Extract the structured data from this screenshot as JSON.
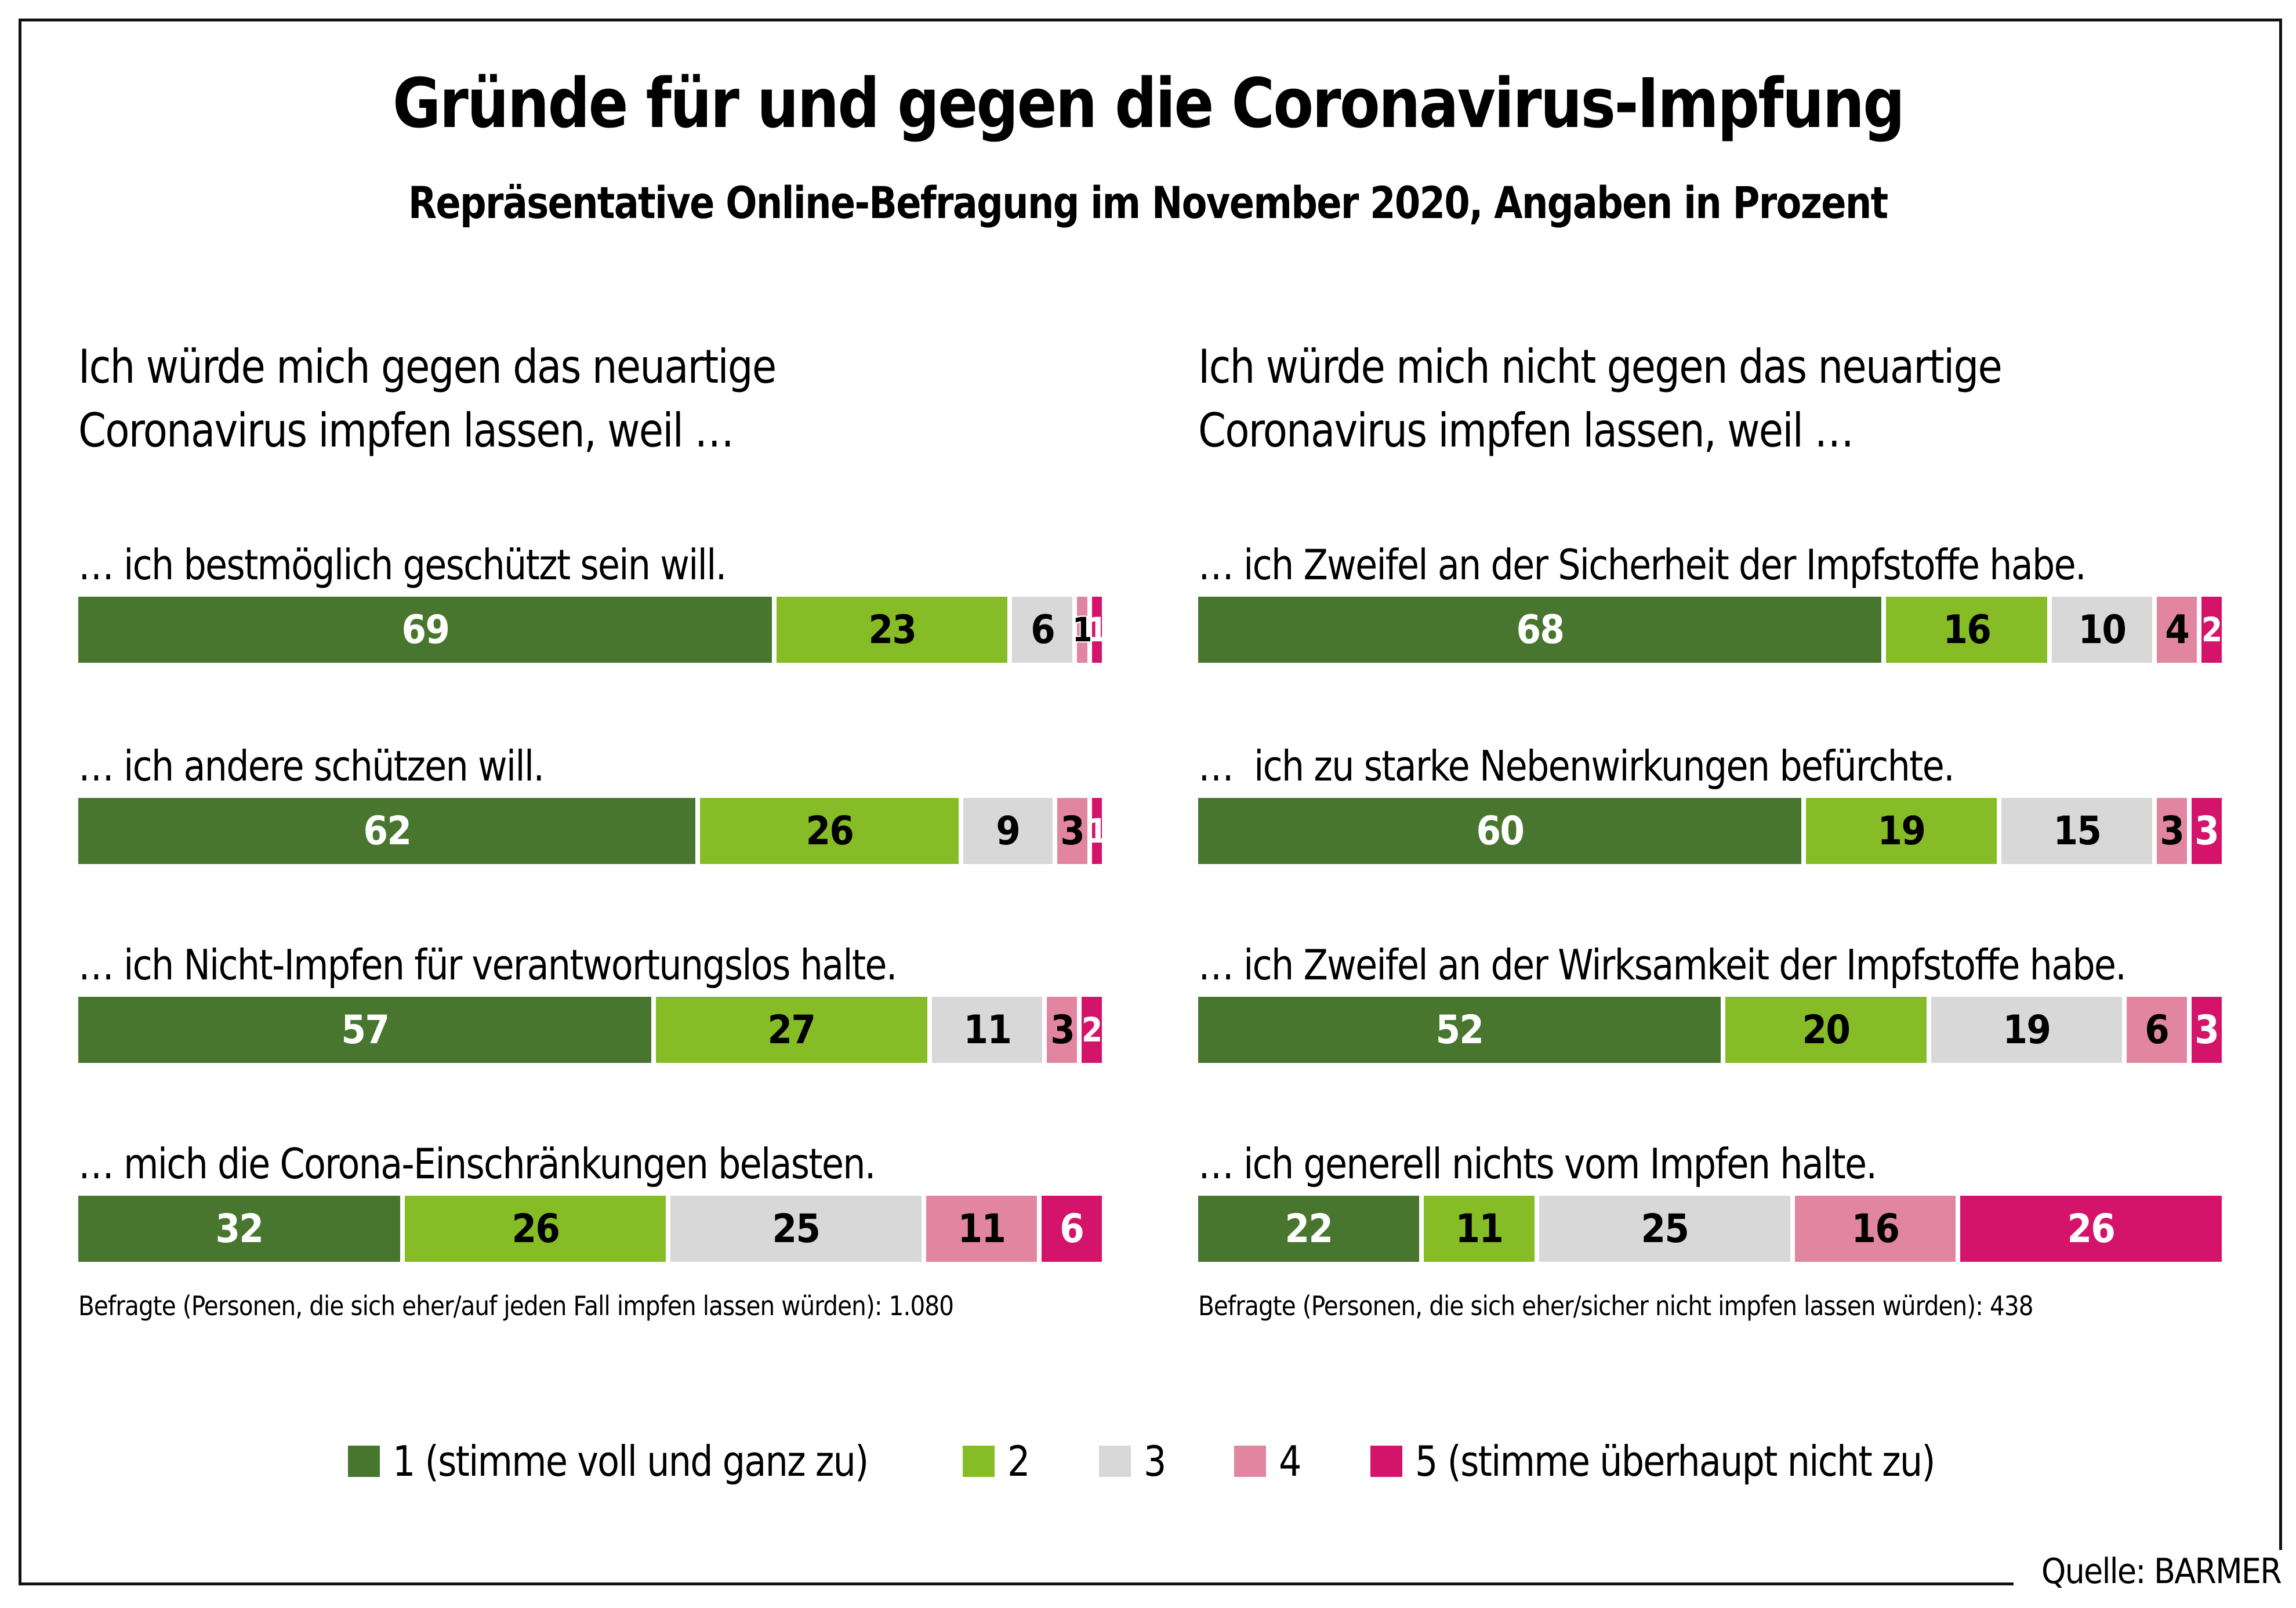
{
  "chart_data": {
    "type": "bar",
    "orientation": "horizontal-stacked-100",
    "title": "Gründe für und gegen die Coronavirus-Impfung",
    "subtitle": "Repräsentative Online-Befragung im November 2020, Angaben in Prozent",
    "source": "Quelle: BARMER",
    "legend": {
      "position": "bottom-center",
      "entries": [
        {
          "label": "1 (stimme voll und ganz zu)",
          "color": "#48762F"
        },
        {
          "label": "2",
          "color": "#86BC25"
        },
        {
          "label": "3",
          "color": "#D8D8D8"
        },
        {
          "label": "4",
          "color": "#E285A0"
        },
        {
          "label": "5 (stimme überhaupt nicht zu)",
          "color": "#D4146A"
        }
      ]
    },
    "panels": [
      {
        "intro_lines": [
          "Ich würde mich gegen das neuartige",
          "Coronavirus impfen lassen, weil …"
        ],
        "footnote": "Befragte (Personen, die sich eher/auf jeden Fall impfen lassen würden): 1.080",
        "rows": [
          {
            "label": "… ich bestmöglich geschützt sein will.",
            "values": [
              69,
              23,
              6,
              1,
              1
            ]
          },
          {
            "label": "… ich andere schützen will.",
            "values": [
              62,
              26,
              9,
              3,
              1
            ]
          },
          {
            "label": "… ich Nicht-Impfen für verantwortungslos halte.",
            "values": [
              57,
              27,
              11,
              3,
              2
            ]
          },
          {
            "label": "… mich die Corona-Einschränkungen belasten.",
            "values": [
              32,
              26,
              25,
              11,
              6
            ]
          }
        ]
      },
      {
        "intro_lines": [
          "Ich würde mich nicht gegen das neuartige",
          "Coronavirus impfen lassen, weil …"
        ],
        "footnote": "Befragte (Personen, die sich eher/sicher nicht impfen lassen würden): 438",
        "rows": [
          {
            "label": "… ich Zweifel an der Sicherheit der Impfstoffe habe.",
            "values": [
              68,
              16,
              10,
              4,
              2
            ]
          },
          {
            "label": "…  ich zu starke Nebenwirkungen befürchte.",
            "values": [
              60,
              19,
              15,
              3,
              3
            ]
          },
          {
            "label": "… ich Zweifel an der Wirksamkeit der Impfstoffe habe.",
            "values": [
              52,
              20,
              19,
              6,
              3
            ]
          },
          {
            "label": "… ich generell nichts vom Impfen halte.",
            "values": [
              22,
              11,
              25,
              16,
              26
            ]
          }
        ]
      }
    ],
    "label_text_colors": [
      "#FFFFFF",
      "#000000",
      "#000000",
      "#000000",
      "#FFFFFF"
    ]
  }
}
